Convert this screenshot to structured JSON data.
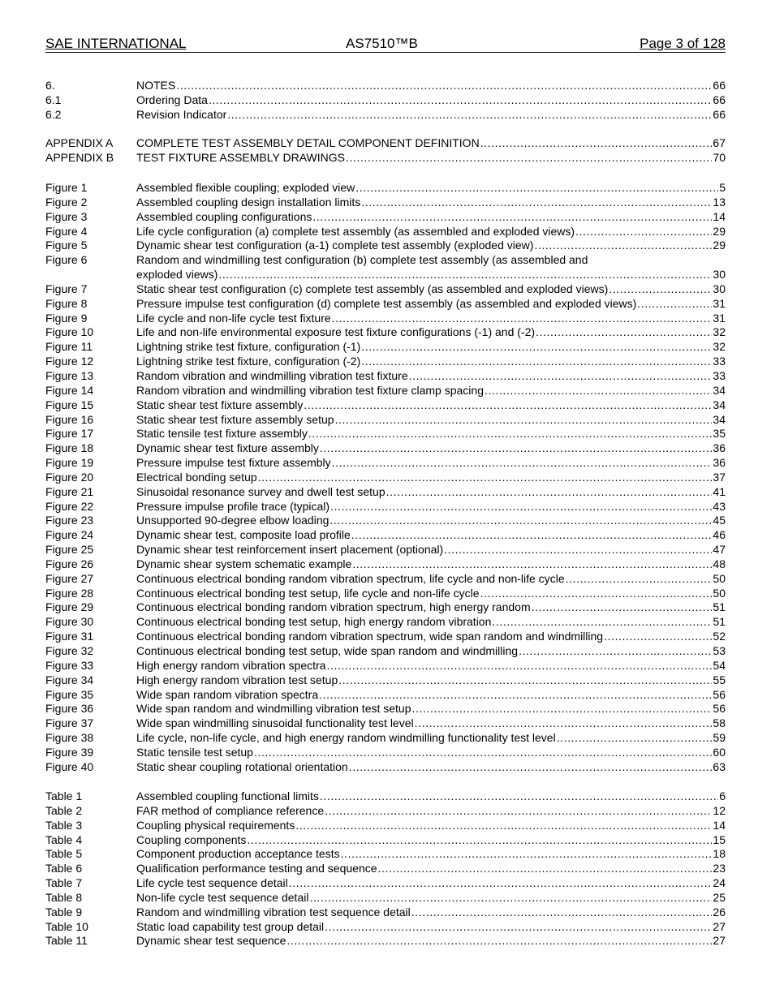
{
  "header": {
    "org": "SAE INTERNATIONAL",
    "doc": "AS7510™B",
    "page": "Page 3 of 128"
  },
  "sections": [
    {
      "label": "6.",
      "title": "NOTES",
      "page": "66"
    },
    {
      "label": "6.1",
      "title": "Ordering Data",
      "page": "66"
    },
    {
      "label": "6.2",
      "title": "Revision Indicator",
      "page": "66"
    }
  ],
  "appendices": [
    {
      "label": "APPENDIX A",
      "title": "COMPLETE TEST ASSEMBLY DETAIL COMPONENT DEFINITION",
      "page": "67"
    },
    {
      "label": "APPENDIX B",
      "title": "TEST FIXTURE ASSEMBLY DRAWINGS",
      "page": "70"
    }
  ],
  "figures": [
    {
      "label": "Figure 1",
      "title": "Assembled flexible coupling; exploded view",
      "page": "5"
    },
    {
      "label": "Figure 2",
      "title": "Assembled coupling design installation limits",
      "page": "13"
    },
    {
      "label": "Figure 3",
      "title": "Assembled coupling configurations",
      "page": "14"
    },
    {
      "label": "Figure 4",
      "title": "Life cycle configuration (a) complete test assembly (as assembled and exploded views)",
      "page": "29"
    },
    {
      "label": "Figure 5",
      "title": "Dynamic shear test configuration (a-1) complete test assembly (exploded view)",
      "page": "29"
    },
    {
      "label": "Figure 6",
      "title": "Random and windmilling test configuration (b) complete test assembly (as assembled and",
      "title_cont": "exploded views)",
      "page": "30"
    },
    {
      "label": "Figure 7",
      "title": "Static shear test configuration (c) complete test assembly (as assembled and exploded views)",
      "page": "30"
    },
    {
      "label": "Figure 8",
      "title": "Pressure impulse test configuration (d) complete test assembly (as assembled and exploded views)",
      "page": "31"
    },
    {
      "label": "Figure 9",
      "title": "Life cycle and non-life cycle test fixture",
      "page": "31"
    },
    {
      "label": "Figure 10",
      "title": "Life and non-life environmental exposure test fixture configurations (-1) and (-2)",
      "page": "32"
    },
    {
      "label": "Figure 11",
      "title": "Lightning strike test fixture, configuration (-1)",
      "page": "32"
    },
    {
      "label": "Figure 12",
      "title": "Lightning strike test fixture, configuration (-2)",
      "page": "33"
    },
    {
      "label": "Figure 13",
      "title": "Random vibration and windmilling vibration test fixture",
      "page": "33"
    },
    {
      "label": "Figure 14",
      "title": "Random vibration and windmilling vibration test fixture clamp spacing",
      "page": "34"
    },
    {
      "label": "Figure 15",
      "title": "Static shear test fixture assembly",
      "page": "34"
    },
    {
      "label": "Figure 16",
      "title": "Static shear test fixture assembly setup",
      "page": "34"
    },
    {
      "label": "Figure 17",
      "title": "Static tensile test fixture assembly",
      "page": "35"
    },
    {
      "label": "Figure 18",
      "title": "Dynamic shear test fixture assembly",
      "page": "36"
    },
    {
      "label": "Figure 19",
      "title": "Pressure impulse test fixture assembly",
      "page": "36"
    },
    {
      "label": "Figure 20",
      "title": "Electrical bonding setup",
      "page": "37"
    },
    {
      "label": "Figure 21",
      "title": "Sinusoidal resonance survey and dwell test setup",
      "page": "41"
    },
    {
      "label": "Figure 22",
      "title": "Pressure impulse profile trace (typical)",
      "page": "43"
    },
    {
      "label": "Figure 23",
      "title": "Unsupported 90-degree elbow loading",
      "page": "45"
    },
    {
      "label": "Figure 24",
      "title": "Dynamic shear test, composite load profile",
      "page": "46"
    },
    {
      "label": "Figure 25",
      "title": "Dynamic shear test reinforcement insert placement (optional)",
      "page": "47"
    },
    {
      "label": "Figure 26",
      "title": "Dynamic shear system schematic example",
      "page": "48"
    },
    {
      "label": "Figure 27",
      "title": "Continuous electrical bonding random vibration spectrum, life cycle and non-life cycle",
      "page": "50"
    },
    {
      "label": "Figure 28",
      "title": "Continuous electrical bonding test setup, life cycle and non-life cycle",
      "page": "50"
    },
    {
      "label": "Figure 29",
      "title": "Continuous electrical bonding random vibration spectrum, high energy random",
      "page": "51"
    },
    {
      "label": "Figure 30",
      "title": "Continuous electrical bonding test setup, high energy random vibration",
      "page": "51"
    },
    {
      "label": "Figure 31",
      "title": "Continuous electrical bonding random vibration spectrum, wide span random and windmilling",
      "page": "52"
    },
    {
      "label": "Figure 32",
      "title": "Continuous electrical bonding test setup, wide span random and windmilling",
      "page": "53"
    },
    {
      "label": "Figure 33",
      "title": "High energy random vibration spectra",
      "page": "54"
    },
    {
      "label": "Figure 34",
      "title": "High energy random vibration test setup",
      "page": "55"
    },
    {
      "label": "Figure 35",
      "title": "Wide span random vibration spectra",
      "page": "56"
    },
    {
      "label": "Figure 36",
      "title": "Wide span random and windmilling vibration test setup",
      "page": "56"
    },
    {
      "label": "Figure 37",
      "title": "Wide span windmilling sinusoidal functionality test level",
      "page": "58"
    },
    {
      "label": "Figure 38",
      "title": "Life cycle, non-life cycle, and high energy random windmilling functionality test level",
      "page": "59"
    },
    {
      "label": "Figure 39",
      "title": "Static tensile test setup",
      "page": "60"
    },
    {
      "label": "Figure 40",
      "title": "Static shear coupling rotational orientation",
      "page": "63"
    }
  ],
  "tables": [
    {
      "label": "Table 1",
      "title": "Assembled coupling functional limits",
      "page": "6"
    },
    {
      "label": "Table 2",
      "title": "FAR method of compliance reference",
      "page": "12"
    },
    {
      "label": "Table 3",
      "title": "Coupling physical requirements",
      "page": "14"
    },
    {
      "label": "Table 4",
      "title": "Coupling components",
      "page": "15"
    },
    {
      "label": "Table 5",
      "title": "Component production acceptance tests",
      "page": "18"
    },
    {
      "label": "Table 6",
      "title": "Qualification performance testing and sequence",
      "page": "23"
    },
    {
      "label": "Table 7",
      "title": "Life cycle test sequence detail",
      "page": "24"
    },
    {
      "label": "Table 8",
      "title": "Non-life cycle test sequence detail",
      "page": "25"
    },
    {
      "label": "Table 9",
      "title": "Random and windmilling vibration test sequence detail",
      "page": "26"
    },
    {
      "label": "Table 10",
      "title": "Static load capability test group detail",
      "page": "27"
    },
    {
      "label": "Table 11",
      "title": "Dynamic shear test sequence",
      "page": "27"
    }
  ]
}
